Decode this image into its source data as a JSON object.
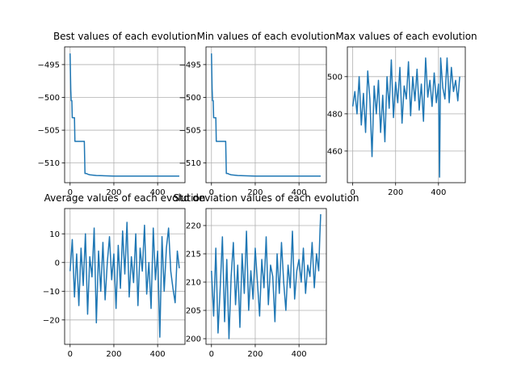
{
  "figure": {
    "background": "#ffffff",
    "line_color": "#1f77b4",
    "grid_color": "#b0b0b0"
  },
  "chart_data": [
    {
      "type": "line",
      "title": "Best values of each evolution",
      "xlabel": "",
      "ylabel": "",
      "xlim": [
        -25,
        525
      ],
      "ylim": [
        -513,
        -492.3
      ],
      "xticks": [
        0,
        200,
        400
      ],
      "yticks": [
        -495,
        -500,
        -505,
        -510
      ],
      "grid": true,
      "series": [
        {
          "x": [
            0,
            3,
            5,
            8,
            10,
            15,
            20,
            22,
            24,
            28,
            60,
            65,
            68,
            75,
            80,
            90,
            120,
            200,
            300,
            400,
            499
          ],
          "y": [
            -493.3,
            -498.8,
            -500.5,
            -500.5,
            -503.1,
            -503.1,
            -503.1,
            -506.7,
            -506.7,
            -506.7,
            -506.7,
            -506.7,
            -511.6,
            -511.6,
            -511.7,
            -511.8,
            -511.9,
            -512.0,
            -512.0,
            -512.0,
            -512.0
          ]
        }
      ]
    },
    {
      "type": "line",
      "title": "Min values of each evolution",
      "xlabel": "",
      "ylabel": "",
      "xlim": [
        -25,
        525
      ],
      "ylim": [
        -513,
        -492.3
      ],
      "xticks": [
        0,
        200,
        400
      ],
      "yticks": [
        -495,
        -500,
        -505,
        -510
      ],
      "grid": true,
      "series": [
        {
          "x": [
            0,
            3,
            5,
            8,
            10,
            15,
            20,
            22,
            24,
            28,
            60,
            65,
            68,
            75,
            80,
            90,
            120,
            200,
            300,
            400,
            499
          ],
          "y": [
            -493.3,
            -498.8,
            -500.5,
            -500.5,
            -503.1,
            -503.1,
            -503.1,
            -506.7,
            -506.7,
            -506.7,
            -506.7,
            -506.7,
            -511.6,
            -511.6,
            -511.7,
            -511.8,
            -511.9,
            -512.0,
            -512.0,
            -512.0,
            -512.0
          ]
        }
      ]
    },
    {
      "type": "line",
      "title": "Max values of each evolution",
      "xlabel": "",
      "ylabel": "",
      "xlim": [
        -25,
        525
      ],
      "ylim": [
        443,
        516
      ],
      "xticks": [
        0,
        200,
        400
      ],
      "yticks": [
        460,
        480,
        500
      ],
      "grid": true,
      "series": [
        {
          "x": [
            0,
            10,
            20,
            30,
            40,
            50,
            60,
            70,
            80,
            90,
            100,
            110,
            120,
            130,
            140,
            150,
            160,
            170,
            180,
            190,
            200,
            210,
            220,
            230,
            240,
            250,
            260,
            270,
            280,
            290,
            300,
            310,
            320,
            330,
            340,
            350,
            360,
            370,
            380,
            390,
            400,
            405,
            410,
            420,
            430,
            440,
            450,
            460,
            470,
            480,
            490,
            499
          ],
          "y": [
            484,
            492,
            480,
            500,
            474,
            491,
            470,
            503,
            488,
            457,
            495,
            480,
            498,
            470,
            490,
            465,
            500,
            483,
            509,
            478,
            497,
            486,
            505,
            475,
            495,
            488,
            508,
            479,
            500,
            487,
            504,
            482,
            496,
            476,
            510,
            489,
            498,
            484,
            502,
            486,
            496,
            446,
            510,
            494,
            488,
            510,
            486,
            505,
            492,
            498,
            487,
            500
          ]
        }
      ]
    },
    {
      "type": "line",
      "title": "Average values of each evolution",
      "xlabel": "",
      "ylabel": "",
      "xlim": [
        -25,
        525
      ],
      "ylim": [
        -28.5,
        18.8
      ],
      "xticks": [
        0,
        200,
        400
      ],
      "yticks": [
        10,
        0,
        -10,
        -20
      ],
      "grid": true,
      "series": [
        {
          "x": [
            0,
            10,
            20,
            30,
            40,
            50,
            60,
            70,
            80,
            90,
            100,
            110,
            120,
            130,
            140,
            150,
            160,
            170,
            180,
            190,
            200,
            210,
            220,
            230,
            240,
            250,
            260,
            270,
            280,
            290,
            300,
            310,
            320,
            330,
            340,
            350,
            360,
            370,
            380,
            390,
            400,
            410,
            420,
            430,
            440,
            450,
            460,
            470,
            480,
            490,
            499
          ],
          "y": [
            -3,
            8,
            -12,
            3,
            -15,
            5,
            -8,
            10,
            -18,
            2,
            -5,
            12,
            -21,
            4,
            -10,
            7,
            -13,
            0,
            9,
            -6,
            3,
            -16,
            6,
            -9,
            11,
            -4,
            14,
            -12,
            2,
            -7,
            10,
            -15,
            5,
            -3,
            13,
            -11,
            0,
            -16,
            12,
            -6,
            4,
            -26,
            9,
            -10,
            5,
            12,
            -3,
            -9,
            -14,
            4,
            -2
          ]
        }
      ]
    },
    {
      "type": "line",
      "title": "Std deviation values of each evolution",
      "xlabel": "",
      "ylabel": "",
      "xlim": [
        -25,
        525
      ],
      "ylim": [
        199,
        223
      ],
      "xticks": [
        0,
        200,
        400
      ],
      "yticks": [
        200,
        205,
        210,
        215,
        220
      ],
      "grid": true,
      "series": [
        {
          "x": [
            0,
            10,
            20,
            30,
            40,
            50,
            60,
            70,
            80,
            90,
            100,
            110,
            120,
            130,
            140,
            150,
            160,
            170,
            180,
            190,
            200,
            210,
            220,
            230,
            240,
            250,
            260,
            270,
            280,
            290,
            300,
            310,
            320,
            330,
            340,
            350,
            360,
            370,
            380,
            390,
            400,
            410,
            420,
            430,
            440,
            450,
            460,
            470,
            480,
            490,
            495,
            499
          ],
          "y": [
            212,
            204,
            216,
            201,
            209,
            218,
            203,
            214,
            200,
            211,
            217,
            206,
            213,
            202,
            215,
            208,
            219,
            205,
            212,
            207,
            216,
            210,
            204,
            214,
            209,
            218,
            206,
            213,
            211,
            203,
            215,
            208,
            217,
            210,
            205,
            213,
            209,
            219,
            207,
            212,
            214,
            210,
            216,
            208,
            213,
            211,
            217,
            209,
            215,
            212,
            218,
            222
          ]
        }
      ]
    }
  ]
}
